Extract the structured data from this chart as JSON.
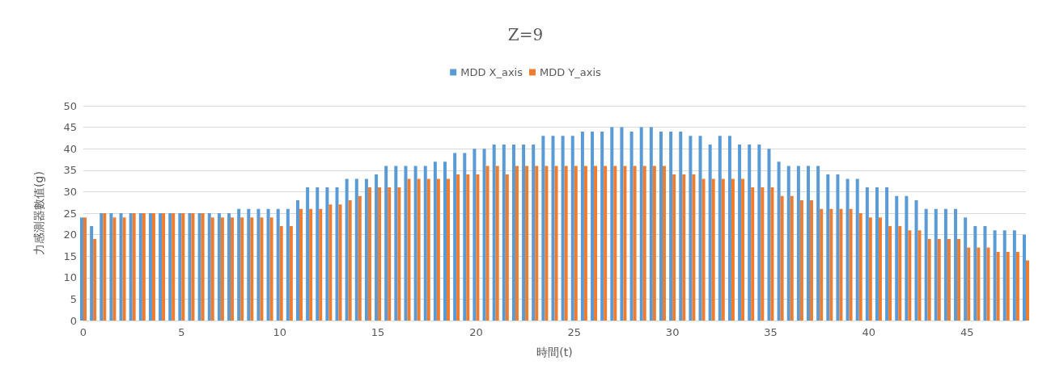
{
  "chart_data": {
    "type": "bar",
    "title": "Z=9",
    "xlabel": "時間(t)",
    "ylabel": "力感測器數值(g)",
    "x": [
      0,
      0.5,
      1,
      1.5,
      2,
      2.5,
      3,
      3.5,
      4,
      4.5,
      5,
      5.5,
      6,
      6.5,
      7,
      7.5,
      8,
      8.5,
      9,
      9.5,
      10,
      10.5,
      11,
      11.5,
      12,
      12.5,
      13,
      13.5,
      14,
      14.5,
      15,
      15.5,
      16,
      16.5,
      17,
      17.5,
      18,
      18.5,
      19,
      19.5,
      20,
      20.5,
      21,
      21.5,
      22,
      22.5,
      23,
      23.5,
      24,
      24.5,
      25,
      25.5,
      26,
      26.5,
      27,
      27.5,
      28,
      28.5,
      29,
      29.5,
      30,
      30.5,
      31,
      31.5,
      32,
      32.5,
      33,
      33.5,
      34,
      34.5,
      35,
      35.5,
      36,
      36.5,
      37,
      37.5,
      38,
      38.5,
      39,
      39.5,
      40,
      40.5,
      41,
      41.5,
      42,
      42.5,
      43,
      43.5,
      44,
      44.5,
      45,
      45.5,
      46,
      46.5,
      47,
      47.5,
      48
    ],
    "series": [
      {
        "name": "MDD X_axis",
        "color": "#5b9bd5",
        "values": [
          24,
          22,
          25,
          25,
          25,
          25,
          25,
          25,
          25,
          25,
          25,
          25,
          25,
          25,
          25,
          25,
          26,
          26,
          26,
          26,
          26,
          26,
          28,
          31,
          31,
          31,
          31,
          33,
          33,
          33,
          34,
          36,
          36,
          36,
          36,
          36,
          37,
          37,
          39,
          39,
          40,
          40,
          41,
          41,
          41,
          41,
          41,
          43,
          43,
          43,
          43,
          44,
          44,
          44,
          45,
          45,
          44,
          45,
          45,
          44,
          44,
          44,
          43,
          43,
          41,
          43,
          43,
          41,
          41,
          41,
          40,
          37,
          36,
          36,
          36,
          36,
          34,
          34,
          33,
          33,
          31,
          31,
          31,
          29,
          29,
          28,
          26,
          26,
          26,
          26,
          24,
          22,
          22,
          21,
          21,
          21,
          20
        ]
      },
      {
        "name": "MDD Y_axis",
        "color": "#ed7d31",
        "values": [
          24,
          19,
          25,
          24,
          24,
          25,
          25,
          25,
          25,
          25,
          25,
          25,
          25,
          24,
          24,
          24,
          24,
          24,
          24,
          24,
          22,
          22,
          26,
          26,
          26,
          27,
          27,
          28,
          29,
          31,
          31,
          31,
          31,
          33,
          33,
          33,
          33,
          33,
          34,
          34,
          34,
          36,
          36,
          34,
          36,
          36,
          36,
          36,
          36,
          36,
          36,
          36,
          36,
          36,
          36,
          36,
          36,
          36,
          36,
          36,
          34,
          34,
          34,
          33,
          33,
          33,
          33,
          33,
          31,
          31,
          31,
          29,
          29,
          28,
          28,
          26,
          26,
          26,
          26,
          25,
          24,
          24,
          22,
          22,
          21,
          21,
          19,
          19,
          19,
          19,
          17,
          17,
          17,
          16,
          16,
          16,
          14
        ]
      }
    ],
    "xlim": [
      0,
      48
    ],
    "xticks": [
      0,
      5,
      10,
      15,
      20,
      25,
      30,
      35,
      40,
      45
    ],
    "ylim": [
      0,
      50
    ],
    "yticks": [
      0,
      5,
      10,
      15,
      20,
      25,
      30,
      35,
      40,
      45,
      50
    ],
    "grid": "y",
    "legend": "top"
  }
}
